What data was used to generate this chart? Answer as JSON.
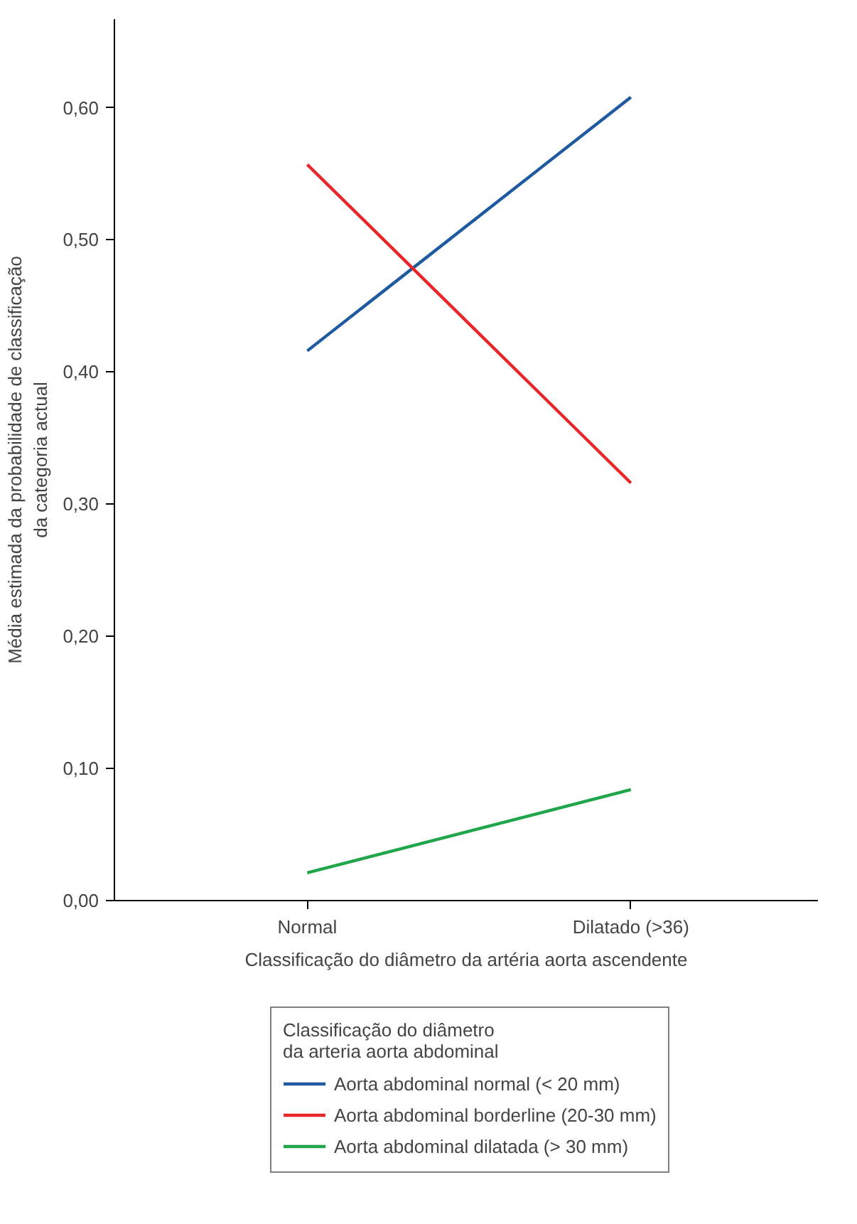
{
  "chart_data": {
    "type": "line",
    "xlabel": "Classificação do diâmetro da artéria aorta ascendente",
    "ylabel": "Média estimada da probabilidade de classificação\nda categoria actual",
    "categories": [
      "Normal",
      "Dilatado (>36)"
    ],
    "ylim": [
      0,
      0.667
    ],
    "yticks": [
      {
        "value": 0,
        "label": "0,00"
      },
      {
        "value": 0.1,
        "label": "0,10"
      },
      {
        "value": 0.2,
        "label": "0,20"
      },
      {
        "value": 0.3,
        "label": "0,30"
      },
      {
        "value": 0.4,
        "label": "0,40"
      },
      {
        "value": 0.5,
        "label": "0,50"
      },
      {
        "value": 0.6,
        "label": "0,60"
      }
    ],
    "legend_title": "Classificação do diâmetro\nda arteria aorta abdominal",
    "legend": "bottom",
    "grid": false,
    "marker": "none",
    "line_style": "solid",
    "series": [
      {
        "name": "Aorta abdominal normal (< 20 mm)",
        "color": "#1f5aa0",
        "values": [
          0.416,
          0.608
        ]
      },
      {
        "name": "Aorta abdominal borderline (20-30 mm)",
        "color": "#e8262a",
        "values": [
          0.557,
          0.316
        ]
      },
      {
        "name": "Aorta abdominal dilatada (> 30 mm)",
        "color": "#1fa54a",
        "values": [
          0.021,
          0.084
        ]
      }
    ]
  }
}
